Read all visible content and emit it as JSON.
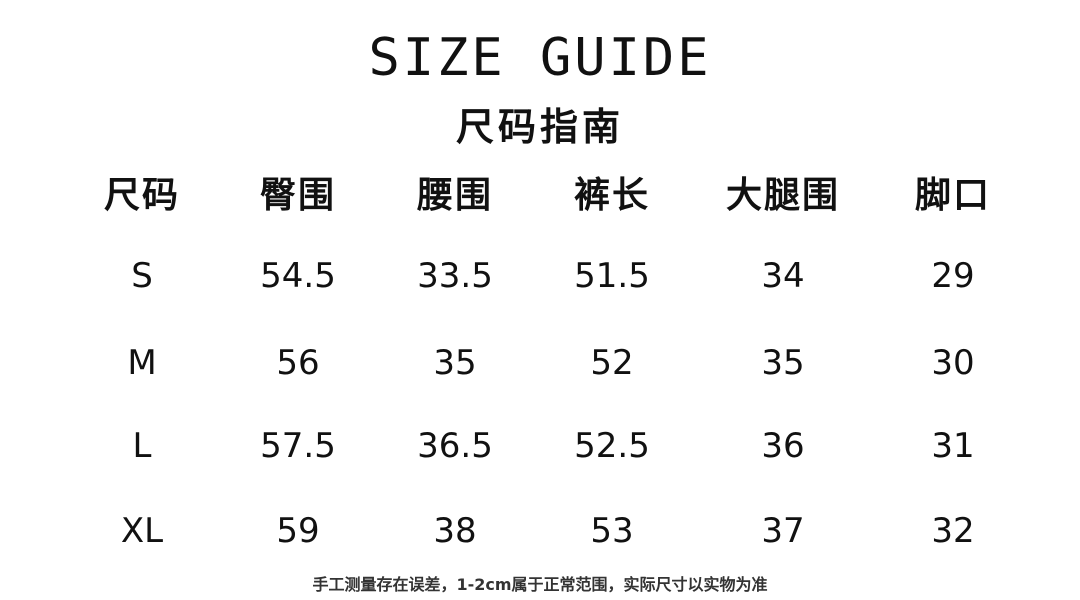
{
  "title": "SIZE GUIDE",
  "subtitle": "尺码指南",
  "table": {
    "headers": [
      "尺码",
      "臀围",
      "腰围",
      "裤长",
      "大腿围",
      "脚口"
    ],
    "rows": [
      [
        "S",
        "54.5",
        "33.5",
        "51.5",
        "34",
        "29"
      ],
      [
        "M",
        "56",
        "35",
        "52",
        "35",
        "30"
      ],
      [
        "L",
        "57.5",
        "36.5",
        "52.5",
        "36",
        "31"
      ],
      [
        "XL",
        "59",
        "38",
        "53",
        "37",
        "32"
      ]
    ]
  },
  "note": "手工测量存在误差，1-2cm属于正常范围，实际尺寸以实物为准"
}
